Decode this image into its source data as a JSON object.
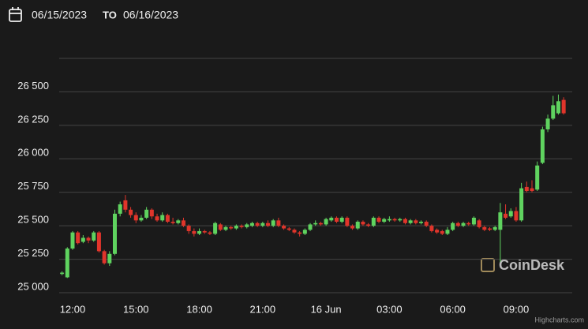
{
  "header": {
    "from": "06/15/2023",
    "to_word": "TO",
    "to": "06/16/2023"
  },
  "chart_data": {
    "type": "candlestick",
    "watermark": "CoinDesk",
    "credit": "Highcharts.com",
    "up_color": "#5fd35f",
    "down_color": "#e0352b",
    "grid": true,
    "ylim": [
      25000,
      26750
    ],
    "yticks": [
      {
        "value": 25000,
        "label": "25 000"
      },
      {
        "value": 25250,
        "label": "25 250"
      },
      {
        "value": 25500,
        "label": "25 500"
      },
      {
        "value": 25750,
        "label": "25 750"
      },
      {
        "value": 26000,
        "label": "26 000"
      },
      {
        "value": 26250,
        "label": "26 250"
      },
      {
        "value": 26500,
        "label": "26 500"
      }
    ],
    "categories": [
      null,
      null,
      "12:00",
      null,
      null,
      null,
      null,
      null,
      null,
      null,
      null,
      null,
      null,
      null,
      "15:00",
      null,
      null,
      null,
      null,
      null,
      null,
      null,
      null,
      null,
      null,
      null,
      "18:00",
      null,
      null,
      null,
      null,
      null,
      null,
      null,
      null,
      null,
      null,
      null,
      "21:00",
      null,
      null,
      null,
      null,
      null,
      null,
      null,
      null,
      null,
      null,
      null,
      "16 Jun",
      null,
      null,
      null,
      null,
      null,
      null,
      null,
      null,
      null,
      null,
      null,
      "03:00",
      null,
      null,
      null,
      null,
      null,
      null,
      null,
      null,
      null,
      null,
      null,
      "06:00",
      null,
      null,
      null,
      null,
      null,
      null,
      null,
      null,
      null,
      null,
      null,
      "09:00",
      null,
      null,
      null,
      null,
      null,
      null,
      null,
      null,
      null
    ],
    "open": [
      25140,
      25115,
      25330,
      25450,
      25380,
      25410,
      25390,
      25450,
      25310,
      25220,
      25290,
      25590,
      25690,
      25620,
      25580,
      25540,
      25560,
      25620,
      25570,
      25540,
      25580,
      25530,
      25520,
      25540,
      25500,
      25460,
      25440,
      25460,
      25450,
      25440,
      25510,
      25470,
      25490,
      25480,
      25500,
      25490,
      25500,
      25520,
      25500,
      25520,
      25500,
      25540,
      25500,
      25480,
      25470,
      25450,
      25440,
      25470,
      25510,
      25520,
      25510,
      25540,
      25560,
      25530,
      25560,
      25500,
      25480,
      25530,
      25510,
      25500,
      25560,
      25530,
      25540,
      25550,
      25540,
      25550,
      25520,
      25540,
      25520,
      25530,
      25500,
      25470,
      25460,
      25440,
      25470,
      25520,
      25500,
      25520,
      25510,
      25540,
      25490,
      25480,
      25470,
      25470,
      25590,
      25570,
      25610,
      25540,
      25790,
      25780,
      25770,
      25970,
      26220,
      26300,
      26340,
      26440
    ],
    "high": [
      25160,
      25340,
      25460,
      25460,
      25430,
      25420,
      25460,
      25460,
      25320,
      25310,
      25620,
      25680,
      25730,
      25640,
      25600,
      25580,
      25640,
      25630,
      25590,
      25600,
      25590,
      25560,
      25550,
      25560,
      25510,
      25480,
      25480,
      25470,
      25460,
      25530,
      25520,
      25500,
      25500,
      25510,
      25510,
      25520,
      25530,
      25530,
      25530,
      25540,
      25550,
      25560,
      25510,
      25490,
      25480,
      25460,
      25480,
      25520,
      25540,
      25530,
      25560,
      25570,
      25570,
      25570,
      25570,
      25510,
      25540,
      25540,
      25520,
      25570,
      25570,
      25560,
      25570,
      25560,
      25560,
      25560,
      25550,
      25550,
      25540,
      25540,
      25510,
      25480,
      25470,
      25490,
      25530,
      25530,
      25530,
      25530,
      25570,
      25550,
      25500,
      25490,
      25500,
      25670,
      25660,
      25630,
      25640,
      25820,
      25830,
      25840,
      25980,
      26240,
      26330,
      26470,
      26480,
      26460
    ],
    "low": [
      25130,
      25110,
      25320,
      25360,
      25370,
      25370,
      25380,
      25300,
      25210,
      25200,
      25280,
      25570,
      25600,
      25560,
      25520,
      25530,
      25550,
      25550,
      25530,
      25530,
      25520,
      25510,
      25510,
      25490,
      25440,
      25420,
      25430,
      25440,
      25430,
      25430,
      25460,
      25460,
      25470,
      25470,
      25480,
      25480,
      25490,
      25490,
      25490,
      25490,
      25490,
      25490,
      25470,
      25460,
      25440,
      25420,
      25430,
      25460,
      25500,
      25500,
      25500,
      25530,
      25520,
      25520,
      25490,
      25470,
      25470,
      25500,
      25490,
      25490,
      25520,
      25520,
      25530,
      25530,
      25530,
      25510,
      25510,
      25510,
      25510,
      25490,
      25450,
      25440,
      25430,
      25430,
      25460,
      25490,
      25490,
      25500,
      25500,
      25480,
      25460,
      25460,
      25460,
      25230,
      25550,
      25560,
      25530,
      25530,
      25750,
      25750,
      25760,
      25960,
      26200,
      26290,
      26330,
      26330
    ],
    "close": [
      25150,
      25330,
      25450,
      25370,
      25410,
      25390,
      25450,
      25310,
      25220,
      25290,
      25590,
      25660,
      25620,
      25580,
      25540,
      25560,
      25620,
      25570,
      25540,
      25580,
      25530,
      25520,
      25540,
      25500,
      25460,
      25440,
      25460,
      25450,
      25440,
      25520,
      25470,
      25490,
      25480,
      25500,
      25490,
      25510,
      25520,
      25500,
      25520,
      25500,
      25540,
      25500,
      25480,
      25470,
      25450,
      25440,
      25470,
      25510,
      25520,
      25510,
      25550,
      25560,
      25530,
      25560,
      25500,
      25480,
      25530,
      25510,
      25500,
      25560,
      25530,
      25550,
      25550,
      25540,
      25550,
      25520,
      25540,
      25520,
      25530,
      25500,
      25460,
      25450,
      25440,
      25470,
      25520,
      25500,
      25520,
      25510,
      25560,
      25490,
      25470,
      25470,
      25490,
      25600,
      25560,
      25610,
      25540,
      25780,
      25760,
      25760,
      25950,
      26220,
      26300,
      26400,
      26430,
      26340
    ]
  }
}
